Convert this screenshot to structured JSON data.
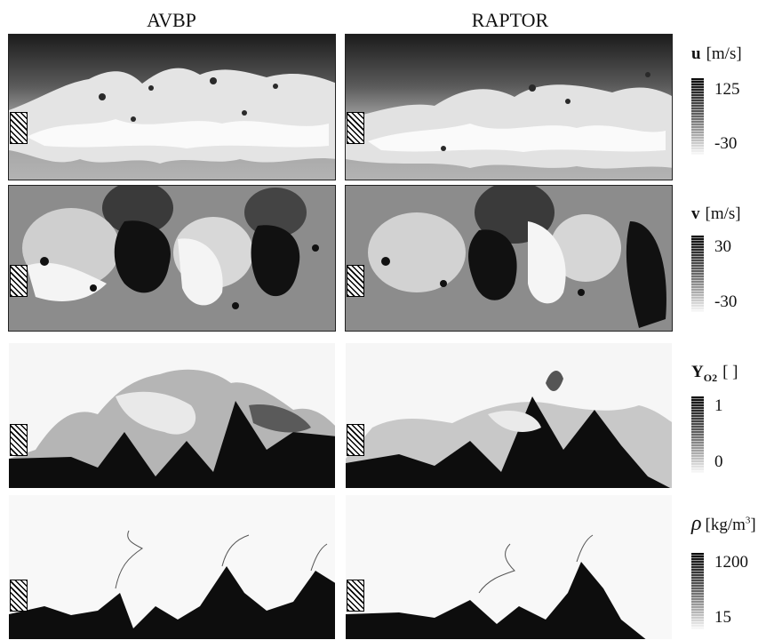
{
  "columns": {
    "left": "AVBP",
    "right": "RAPTOR"
  },
  "legends": [
    {
      "var": "u",
      "unit": "[m/s]",
      "max": "125",
      "min": "-30"
    },
    {
      "var": "v",
      "unit": "[m/s]",
      "max": "30",
      "min": "-30"
    },
    {
      "var": "Y",
      "var_sub": "O2",
      "unit": "[ ]",
      "max": "1",
      "min": "0"
    },
    {
      "var": "ρ",
      "unit": "[kg/m",
      "unit_sup": "3",
      "unit_end": "]",
      "max": "1200",
      "min": "15"
    }
  ],
  "colors": {
    "dark": "#0d0d0d",
    "mid": "#8a8a8a",
    "light": "#f2f2f2"
  }
}
